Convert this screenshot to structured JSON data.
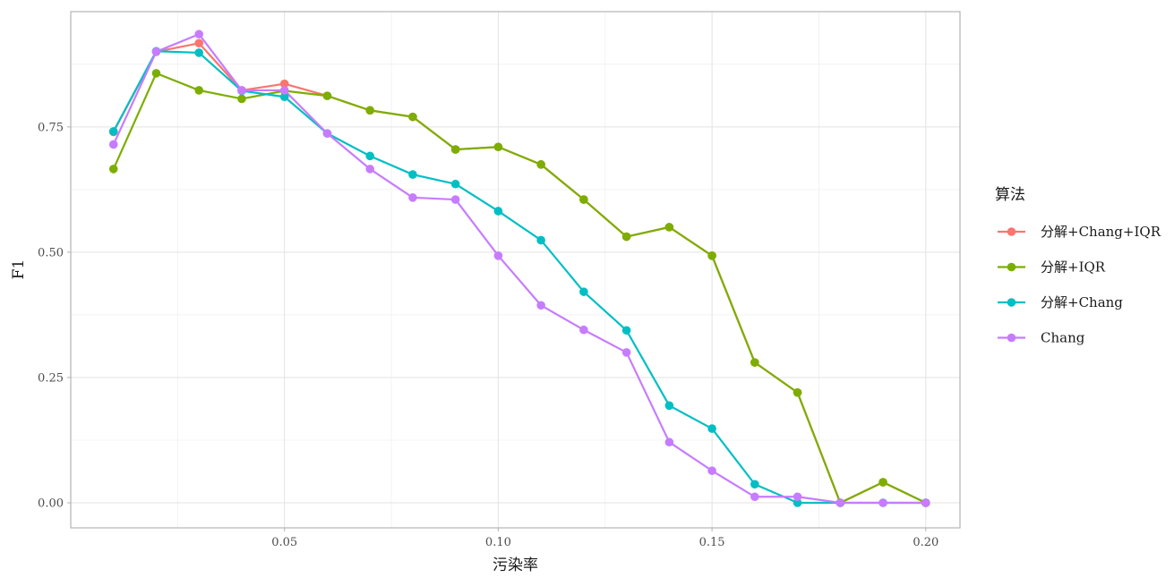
{
  "chart_data": {
    "type": "line",
    "xlabel": "污染率",
    "ylabel": "F1",
    "xlim": [
      0.0,
      0.208
    ],
    "ylim": [
      -0.05,
      0.98
    ],
    "x_ticks": [
      0.05,
      0.1,
      0.15,
      0.2
    ],
    "x_tick_labels": [
      "0.05",
      "0.10",
      "0.15",
      "0.20"
    ],
    "y_ticks": [
      0.0,
      0.25,
      0.5,
      0.75
    ],
    "y_tick_labels": [
      "0.00",
      "0.25",
      "0.50",
      "0.75"
    ],
    "grid": true,
    "legend": {
      "title": "算法",
      "position": "right"
    },
    "x": [
      0.01,
      0.02,
      0.03,
      0.04,
      0.05,
      0.06,
      0.07,
      0.08,
      0.09,
      0.1,
      0.11,
      0.12,
      0.13,
      0.14,
      0.15,
      0.16,
      0.17,
      0.18,
      0.19,
      0.2
    ],
    "series": [
      {
        "name": "分解+Chang+IQR",
        "color": "#F8766D",
        "values": [
          0.74,
          0.9,
          0.917,
          0.823,
          0.836,
          0.812,
          0.783,
          0.77,
          0.705,
          0.71,
          0.675,
          0.605,
          0.531,
          0.55,
          0.493,
          0.28,
          0.22,
          0.0,
          0.041,
          0.0
        ]
      },
      {
        "name": "分解+IQR",
        "color": "#7CAE00",
        "values": [
          0.666,
          0.857,
          0.823,
          0.806,
          0.822,
          0.812,
          0.783,
          0.77,
          0.705,
          0.71,
          0.675,
          0.605,
          0.531,
          0.55,
          0.493,
          0.28,
          0.22,
          0.0,
          0.041,
          0.0
        ]
      },
      {
        "name": "分解+Chang",
        "color": "#00BFC4",
        "values": [
          0.741,
          0.901,
          0.898,
          0.822,
          0.81,
          0.737,
          0.692,
          0.655,
          0.636,
          0.582,
          0.524,
          0.421,
          0.344,
          0.194,
          0.148,
          0.037,
          0.0,
          0.0,
          0.0,
          0.0
        ]
      },
      {
        "name": "Chang",
        "color": "#C77CFF",
        "values": [
          0.715,
          0.9,
          0.935,
          0.823,
          0.823,
          0.737,
          0.666,
          0.609,
          0.605,
          0.493,
          0.394,
          0.345,
          0.3,
          0.121,
          0.064,
          0.012,
          0.012,
          0.0,
          0.0,
          0.0
        ]
      }
    ]
  }
}
